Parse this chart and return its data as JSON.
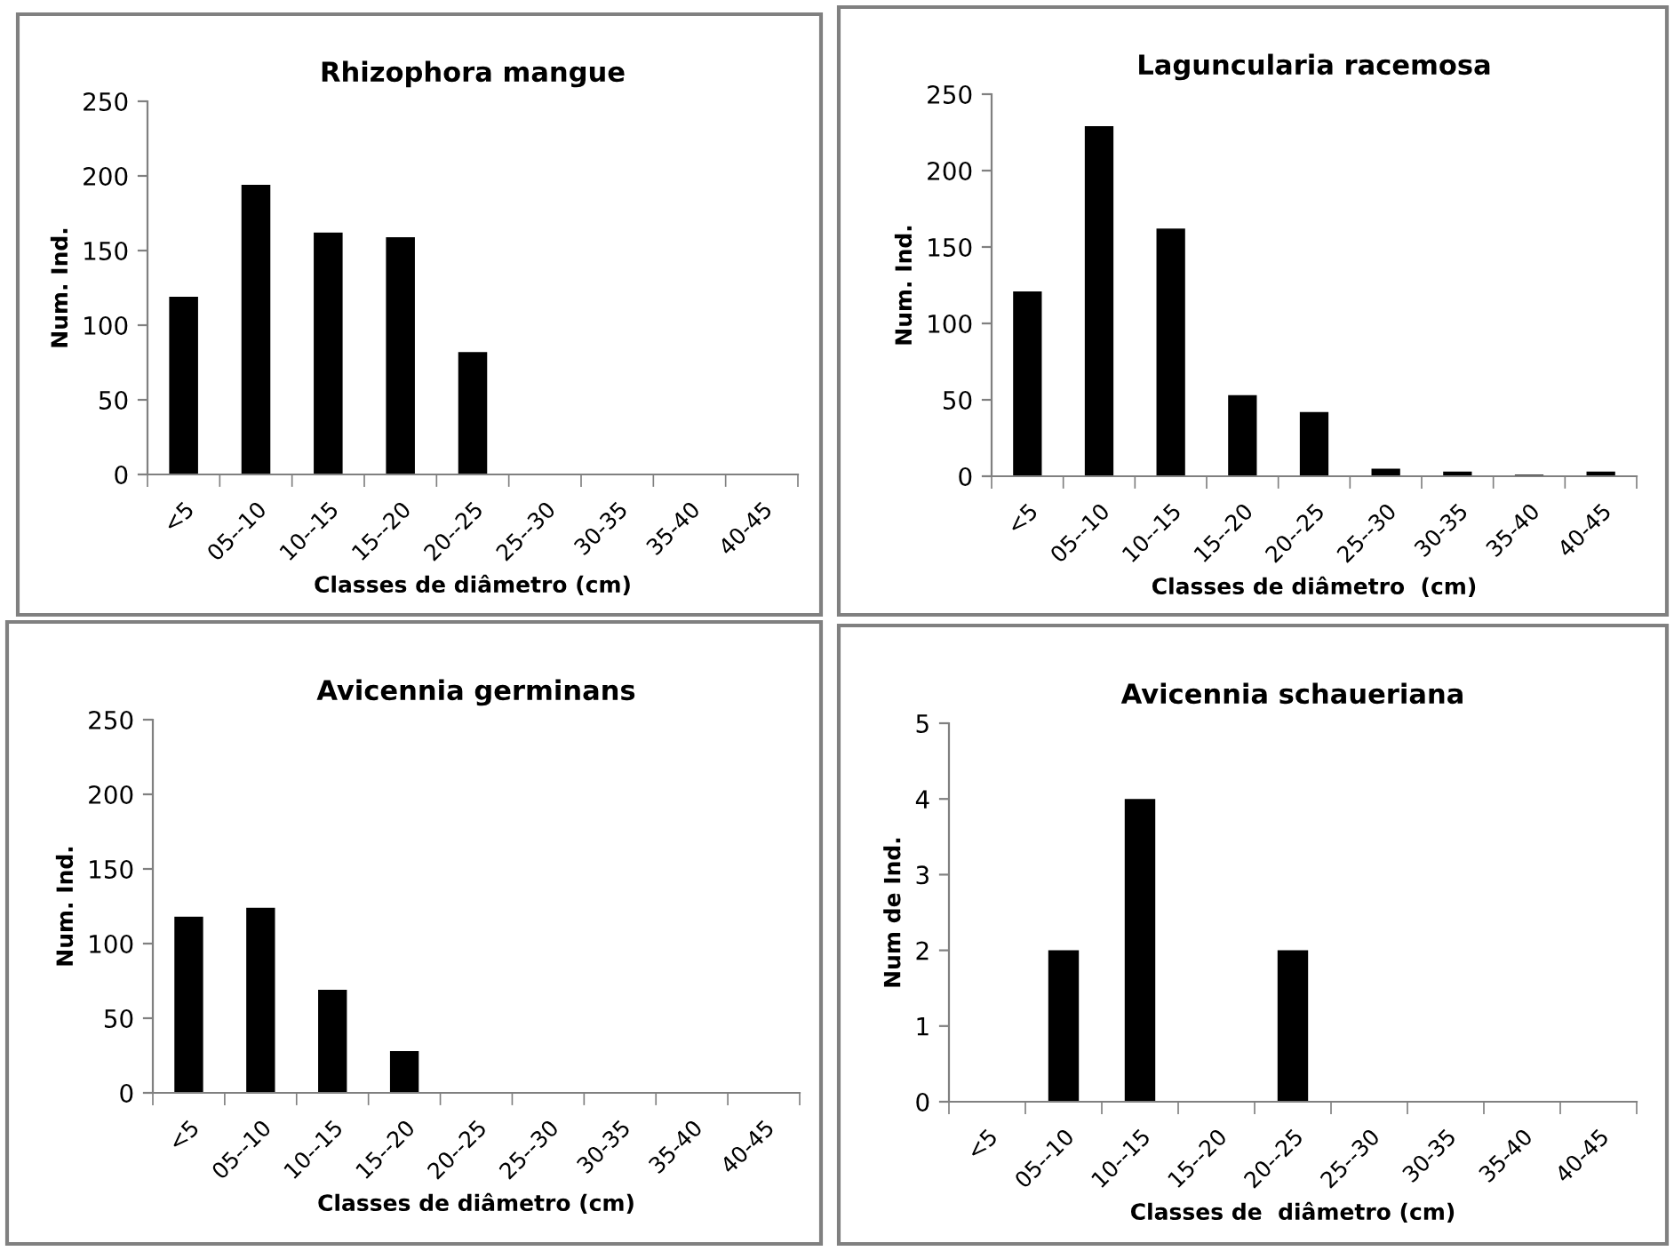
{
  "chart_data": [
    {
      "type": "bar",
      "title": "Rhizophora mangue",
      "xlabel": "Classes de diâmetro (cm)",
      "ylabel": "Num. Ind.",
      "categories": [
        "<5",
        "05--10",
        "10--15",
        "15--20",
        "20--25",
        "25--30",
        "30-35",
        "35-40",
        "40-45"
      ],
      "values": [
        119,
        194,
        162,
        159,
        82,
        0,
        0,
        0,
        0
      ],
      "color": "#000000",
      "ylim": [
        0,
        250
      ],
      "yticks": [
        0,
        50,
        100,
        150,
        200,
        250
      ]
    },
    {
      "type": "bar",
      "title": "Laguncularia racemosa",
      "xlabel": "Classes de diâmetro  (cm)",
      "ylabel": "Num. Ind.",
      "categories": [
        "<5",
        "05--10",
        "10--15",
        "15--20",
        "20--25",
        "25--30",
        "30-35",
        "35-40",
        "40-45"
      ],
      "values": [
        121,
        229,
        162,
        53,
        42,
        5,
        3,
        1,
        3
      ],
      "color": "#000000",
      "ylim": [
        0,
        250
      ],
      "yticks": [
        0,
        50,
        100,
        150,
        200,
        250
      ]
    },
    {
      "type": "bar",
      "title": "Avicennia germinans",
      "xlabel": "Classes de diâmetro (cm)",
      "ylabel": "Num. Ind.",
      "categories": [
        "<5",
        "05--10",
        "10--15",
        "15--20",
        "20--25",
        "25--30",
        "30-35",
        "35-40",
        "40-45"
      ],
      "values": [
        118,
        124,
        69,
        28,
        0,
        0,
        0,
        0,
        0
      ],
      "color": "#000000",
      "ylim": [
        0,
        250
      ],
      "yticks": [
        0,
        50,
        100,
        150,
        200,
        250
      ]
    },
    {
      "type": "bar",
      "title": "Avicennia schaueriana",
      "xlabel": "Classes de  diâmetro (cm)",
      "ylabel": "Num de Ind.",
      "categories": [
        "<5",
        "05--10",
        "10--15",
        "15--20",
        "20--25",
        "25--30",
        "30-35",
        "35-40",
        "40-45"
      ],
      "values": [
        0,
        2,
        4,
        0,
        2,
        0,
        0,
        0,
        0
      ],
      "color": "#000000",
      "ylim": [
        0,
        5
      ],
      "yticks": [
        0,
        1,
        2,
        3,
        4,
        5
      ]
    }
  ]
}
